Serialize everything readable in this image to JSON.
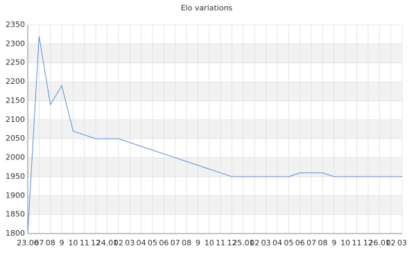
{
  "chart_data": {
    "type": "line",
    "title": "Elo variations",
    "categories": [
      "23.06",
      "07",
      "08",
      "9",
      "10",
      "11",
      "12",
      "24.01",
      "02",
      "03",
      "04",
      "05",
      "06",
      "07",
      "08",
      "9",
      "10",
      "11",
      "12",
      "25.01",
      "02",
      "03",
      "04",
      "05",
      "06",
      "07",
      "08",
      "9",
      "10",
      "11",
      "12",
      "26.01",
      "02",
      "03"
    ],
    "series": [
      {
        "name": "Elo",
        "color": "#5b8fd9",
        "values": [
          1800,
          2320,
          2140,
          2190,
          2070,
          2060,
          2050,
          2050,
          2050,
          2040,
          2030,
          2020,
          2010,
          2000,
          1990,
          1980,
          1970,
          1960,
          1950,
          1950,
          1950,
          1950,
          1950,
          1950,
          1960,
          1960,
          1960,
          1950,
          1950,
          1950,
          1950,
          1950,
          1950,
          1950
        ]
      }
    ],
    "ylim": [
      1800,
      2350
    ],
    "yticks": [
      1800,
      1850,
      1900,
      1950,
      2000,
      2050,
      2100,
      2150,
      2200,
      2250,
      2300,
      2350
    ],
    "grid": true
  }
}
